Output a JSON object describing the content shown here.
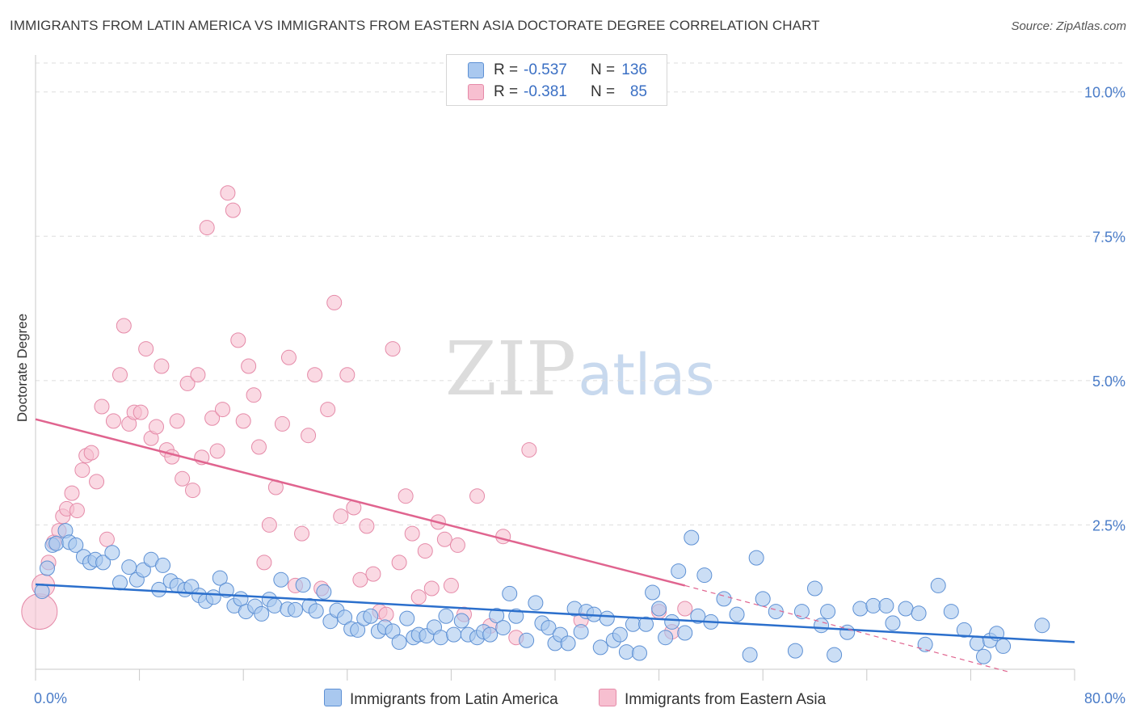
{
  "title": "IMMIGRANTS FROM LATIN AMERICA VS IMMIGRANTS FROM EASTERN ASIA DOCTORATE DEGREE CORRELATION CHART",
  "source": "Source: ZipAtlas.com",
  "watermark": {
    "zip": "ZIP",
    "atlas": "atlas"
  },
  "colors": {
    "blue_fill": "#a9c8ef",
    "blue_stroke": "#5d90d4",
    "blue_line": "#2b6fcc",
    "pink_fill": "#f7bfd0",
    "pink_stroke": "#e58aa8",
    "pink_line": "#e0648f",
    "axis_label": "#4a7cc8",
    "grid": "#dddddd"
  },
  "legend_top": {
    "series": [
      {
        "name": "Immigrants from Latin America",
        "r_label": "R =",
        "r_value": "-0.537",
        "n_label": "N =",
        "n_value": "136",
        "color": "#a9c8ef"
      },
      {
        "name": "Immigrants from Eastern Asia",
        "r_label": "R =",
        "r_value": "-0.381",
        "n_label": "N =",
        "n_value": "85",
        "color": "#f7bfd0"
      }
    ]
  },
  "legend_bottom": [
    {
      "label": "Immigrants from Latin America",
      "color": "#a9c8ef"
    },
    {
      "label": "Immigrants from Eastern Asia",
      "color": "#f7bfd0"
    }
  ],
  "chart_data": {
    "type": "scatter",
    "title": "IMMIGRANTS FROM LATIN AMERICA VS IMMIGRANTS FROM EASTERN ASIA DOCTORATE DEGREE CORRELATION CHART",
    "xlabel": "",
    "ylabel": "Doctorate Degree",
    "xlim": [
      0,
      80
    ],
    "ylim": [
      0,
      10.5
    ],
    "x_tick_labels": [
      {
        "value": 0,
        "label": "0.0%"
      },
      {
        "value": 80,
        "label": "80.0%"
      }
    ],
    "y_tick_labels": [
      {
        "value": 2.5,
        "label": "2.5%"
      },
      {
        "value": 5.0,
        "label": "5.0%"
      },
      {
        "value": 7.5,
        "label": "7.5%"
      },
      {
        "value": 10.0,
        "label": "10.0%"
      }
    ],
    "x_minor_ticks": [
      0,
      8,
      16,
      24,
      32,
      40,
      48,
      56,
      64,
      72,
      80
    ],
    "y_gridlines": [
      2.5,
      5.0,
      7.5,
      10.0
    ],
    "series": [
      {
        "name": "Immigrants from Latin America",
        "color": "#a9c8ef",
        "trend": {
          "x": [
            0,
            80
          ],
          "y": [
            1.47,
            0.47
          ],
          "style": "solid"
        },
        "points": [
          [
            0.5,
            1.35
          ],
          [
            0.9,
            1.75
          ],
          [
            1.3,
            2.15
          ],
          [
            1.6,
            2.18
          ],
          [
            2.3,
            2.4
          ],
          [
            2.6,
            2.2
          ],
          [
            3.1,
            2.15
          ],
          [
            3.7,
            1.95
          ],
          [
            4.2,
            1.85
          ],
          [
            4.6,
            1.9
          ],
          [
            5.2,
            1.85
          ],
          [
            5.9,
            2.02
          ],
          [
            6.5,
            1.5
          ],
          [
            7.2,
            1.77
          ],
          [
            7.8,
            1.55
          ],
          [
            8.3,
            1.72
          ],
          [
            8.9,
            1.9
          ],
          [
            9.5,
            1.38
          ],
          [
            9.8,
            1.8
          ],
          [
            10.4,
            1.53
          ],
          [
            10.9,
            1.45
          ],
          [
            11.5,
            1.38
          ],
          [
            12.0,
            1.43
          ],
          [
            12.6,
            1.28
          ],
          [
            13.1,
            1.18
          ],
          [
            13.7,
            1.25
          ],
          [
            14.2,
            1.58
          ],
          [
            14.7,
            1.37
          ],
          [
            15.3,
            1.1
          ],
          [
            15.8,
            1.22
          ],
          [
            16.2,
            1.0
          ],
          [
            16.9,
            1.09
          ],
          [
            17.4,
            0.96
          ],
          [
            18.0,
            1.21
          ],
          [
            18.4,
            1.1
          ],
          [
            18.9,
            1.55
          ],
          [
            19.4,
            1.04
          ],
          [
            20.0,
            1.03
          ],
          [
            20.6,
            1.46
          ],
          [
            21.1,
            1.1
          ],
          [
            21.6,
            1.01
          ],
          [
            22.2,
            1.34
          ],
          [
            22.7,
            0.83
          ],
          [
            23.2,
            1.02
          ],
          [
            23.8,
            0.9
          ],
          [
            24.3,
            0.7
          ],
          [
            24.8,
            0.68
          ],
          [
            25.3,
            0.88
          ],
          [
            25.8,
            0.92
          ],
          [
            26.4,
            0.66
          ],
          [
            26.9,
            0.73
          ],
          [
            27.5,
            0.66
          ],
          [
            28.0,
            0.47
          ],
          [
            28.6,
            0.88
          ],
          [
            29.1,
            0.55
          ],
          [
            29.5,
            0.6
          ],
          [
            30.1,
            0.58
          ],
          [
            30.7,
            0.73
          ],
          [
            31.2,
            0.55
          ],
          [
            31.6,
            0.92
          ],
          [
            32.2,
            0.6
          ],
          [
            32.8,
            0.84
          ],
          [
            33.3,
            0.6
          ],
          [
            34.0,
            0.55
          ],
          [
            34.5,
            0.65
          ],
          [
            35.0,
            0.6
          ],
          [
            35.5,
            0.93
          ],
          [
            36.0,
            0.72
          ],
          [
            36.5,
            1.31
          ],
          [
            37.0,
            0.92
          ],
          [
            37.8,
            0.5
          ],
          [
            38.5,
            1.15
          ],
          [
            39.0,
            0.8
          ],
          [
            39.5,
            0.72
          ],
          [
            40.0,
            0.45
          ],
          [
            40.4,
            0.6
          ],
          [
            41.0,
            0.45
          ],
          [
            41.5,
            1.05
          ],
          [
            42.0,
            0.65
          ],
          [
            42.4,
            1.0
          ],
          [
            43.0,
            0.95
          ],
          [
            43.5,
            0.38
          ],
          [
            44.0,
            0.88
          ],
          [
            44.5,
            0.5
          ],
          [
            45.0,
            0.6
          ],
          [
            45.5,
            0.3
          ],
          [
            46.0,
            0.78
          ],
          [
            46.5,
            0.28
          ],
          [
            47.0,
            0.78
          ],
          [
            47.5,
            1.33
          ],
          [
            48.0,
            1.05
          ],
          [
            48.5,
            0.55
          ],
          [
            49.0,
            0.82
          ],
          [
            49.5,
            1.7
          ],
          [
            50.0,
            0.63
          ],
          [
            50.5,
            2.28
          ],
          [
            51.0,
            0.92
          ],
          [
            51.5,
            1.63
          ],
          [
            52.0,
            0.82
          ],
          [
            53.0,
            1.22
          ],
          [
            54.0,
            0.95
          ],
          [
            55.0,
            0.25
          ],
          [
            55.5,
            1.93
          ],
          [
            56.0,
            1.22
          ],
          [
            57.0,
            1.0
          ],
          [
            58.5,
            0.32
          ],
          [
            59.0,
            1.0
          ],
          [
            60.0,
            1.4
          ],
          [
            60.5,
            0.76
          ],
          [
            61.0,
            1.0
          ],
          [
            61.5,
            0.25
          ],
          [
            62.5,
            0.64
          ],
          [
            63.5,
            1.05
          ],
          [
            64.5,
            1.1
          ],
          [
            65.5,
            1.1
          ],
          [
            66.0,
            0.8
          ],
          [
            67.0,
            1.05
          ],
          [
            68.0,
            0.97
          ],
          [
            68.5,
            0.43
          ],
          [
            69.5,
            1.45
          ],
          [
            70.5,
            1.0
          ],
          [
            71.5,
            0.68
          ],
          [
            72.5,
            0.45
          ],
          [
            73.0,
            0.22
          ],
          [
            73.5,
            0.5
          ],
          [
            74.0,
            0.62
          ],
          [
            74.5,
            0.4
          ],
          [
            77.5,
            0.76
          ]
        ]
      },
      {
        "name": "Immigrants from Eastern Asia",
        "color": "#f7bfd0",
        "trend": {
          "x": [
            0,
            50
          ],
          "y": [
            4.33,
            1.45
          ],
          "style": "solid",
          "dashed_extension": {
            "x": [
              50,
              75
            ],
            "y": [
              1.45,
              -0.05
            ]
          }
        },
        "points": [
          [
            0.3,
            1.0
          ],
          [
            0.6,
            1.45
          ],
          [
            1.0,
            1.85
          ],
          [
            1.4,
            2.2
          ],
          [
            1.8,
            2.4
          ],
          [
            2.1,
            2.65
          ],
          [
            2.4,
            2.78
          ],
          [
            2.8,
            3.05
          ],
          [
            3.2,
            2.75
          ],
          [
            3.6,
            3.45
          ],
          [
            3.9,
            3.7
          ],
          [
            4.3,
            3.75
          ],
          [
            4.7,
            3.25
          ],
          [
            5.1,
            4.55
          ],
          [
            5.5,
            2.25
          ],
          [
            6.0,
            4.3
          ],
          [
            6.5,
            5.1
          ],
          [
            6.8,
            5.95
          ],
          [
            7.2,
            4.25
          ],
          [
            7.6,
            4.45
          ],
          [
            8.1,
            4.45
          ],
          [
            8.5,
            5.55
          ],
          [
            8.9,
            4.0
          ],
          [
            9.3,
            4.2
          ],
          [
            9.7,
            5.25
          ],
          [
            10.1,
            3.8
          ],
          [
            10.5,
            3.68
          ],
          [
            10.9,
            4.3
          ],
          [
            11.3,
            3.3
          ],
          [
            11.7,
            4.95
          ],
          [
            12.1,
            3.1
          ],
          [
            12.5,
            5.1
          ],
          [
            12.8,
            3.67
          ],
          [
            13.2,
            7.65
          ],
          [
            13.6,
            4.35
          ],
          [
            14.0,
            3.78
          ],
          [
            14.4,
            4.5
          ],
          [
            14.8,
            8.25
          ],
          [
            15.2,
            7.95
          ],
          [
            15.6,
            5.7
          ],
          [
            16.0,
            4.3
          ],
          [
            16.4,
            5.25
          ],
          [
            16.8,
            4.75
          ],
          [
            17.2,
            3.85
          ],
          [
            17.6,
            1.85
          ],
          [
            18.0,
            2.5
          ],
          [
            18.5,
            3.15
          ],
          [
            19.0,
            4.25
          ],
          [
            19.5,
            5.4
          ],
          [
            20.0,
            1.45
          ],
          [
            20.5,
            2.35
          ],
          [
            21.0,
            4.05
          ],
          [
            21.5,
            5.1
          ],
          [
            22.0,
            1.4
          ],
          [
            22.5,
            4.5
          ],
          [
            23.0,
            6.35
          ],
          [
            23.5,
            2.65
          ],
          [
            24.0,
            5.1
          ],
          [
            24.5,
            2.8
          ],
          [
            25.0,
            1.55
          ],
          [
            25.5,
            2.48
          ],
          [
            26.0,
            1.65
          ],
          [
            26.5,
            1.0
          ],
          [
            27.0,
            0.95
          ],
          [
            27.5,
            5.55
          ],
          [
            28.0,
            1.85
          ],
          [
            28.5,
            3.0
          ],
          [
            29.0,
            2.35
          ],
          [
            29.5,
            1.25
          ],
          [
            30.0,
            2.05
          ],
          [
            30.5,
            1.4
          ],
          [
            31.0,
            2.55
          ],
          [
            31.5,
            2.25
          ],
          [
            32.0,
            1.45
          ],
          [
            32.5,
            2.15
          ],
          [
            33.0,
            0.95
          ],
          [
            34.0,
            3.0
          ],
          [
            35.0,
            0.75
          ],
          [
            36.0,
            2.3
          ],
          [
            37.0,
            0.55
          ],
          [
            38.0,
            3.8
          ],
          [
            42.0,
            0.85
          ],
          [
            48.0,
            1.0
          ],
          [
            49.0,
            0.65
          ],
          [
            50.0,
            1.05
          ]
        ]
      }
    ]
  }
}
